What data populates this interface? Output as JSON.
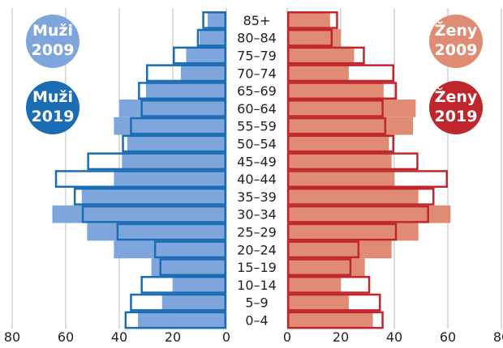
{
  "chart_data": {
    "type": "bar",
    "subtype": "population-pyramid",
    "title": "",
    "xlabel": "",
    "ylabel": "",
    "categories": [
      "85+",
      "80–84",
      "75–79",
      "70–74",
      "65–69",
      "60–64",
      "55–59",
      "50–54",
      "45–49",
      "40–44",
      "35–39",
      "30–34",
      "25–29",
      "20–24",
      "15–19",
      "10–14",
      "5–9",
      "0–4"
    ],
    "series": [
      {
        "name": "Muži 2009",
        "side": "left",
        "style": "filled",
        "color": "#7ea6dc",
        "values": [
          7,
          10,
          15,
          17,
          30,
          40,
          42,
          37,
          39,
          42,
          54,
          65,
          52,
          42,
          28,
          20,
          24,
          33
        ]
      },
      {
        "name": "Muži 2019",
        "side": "left",
        "style": "outline",
        "color": "#1a6cb3",
        "values": [
          9,
          11,
          20,
          30,
          33,
          32,
          36,
          39,
          52,
          64,
          57,
          54,
          41,
          27,
          25,
          32,
          36,
          38
        ]
      },
      {
        "name": "Ženy 2009",
        "side": "right",
        "style": "filled",
        "color": "#e08c74",
        "values": [
          16,
          20,
          25,
          23,
          36,
          48,
          47,
          38,
          39,
          40,
          49,
          61,
          49,
          39,
          29,
          20,
          23,
          32
        ]
      },
      {
        "name": "Ženy 2019",
        "side": "right",
        "style": "outline",
        "color": "#c0272d",
        "values": [
          19,
          17,
          29,
          40,
          41,
          36,
          37,
          40,
          49,
          60,
          55,
          53,
          41,
          27,
          24,
          31,
          35,
          36
        ]
      }
    ],
    "xlim": [
      0,
      80
    ],
    "ticks": [
      "80",
      "60",
      "40",
      "20",
      "0",
      "0",
      "20",
      "40",
      "60",
      "80"
    ],
    "grid": true,
    "legend_placement": "top-left and top-right badges"
  },
  "legend": {
    "male_2009": {
      "line1": "Muži",
      "line2": "2009",
      "color": "#7ea6dc"
    },
    "male_2019": {
      "line1": "Muži",
      "line2": "2019",
      "color": "#1a6cb3"
    },
    "female_2009": {
      "line1": "Ženy",
      "line2": "2009",
      "color": "#e08c74"
    },
    "female_2019": {
      "line1": "Ženy",
      "line2": "2019",
      "color": "#c0272d"
    }
  }
}
